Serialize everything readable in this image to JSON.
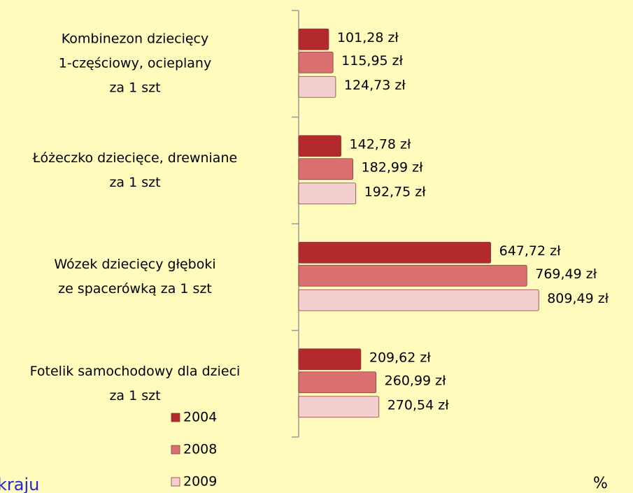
{
  "chart_data": {
    "type": "barh",
    "categories": [
      "Kombinezon dziecięcy\n1-częściowy, ocieplany\nza 1 szt",
      "Łóżeczko dziecięce, drewniane\nza 1 szt",
      "Wózek dziecięcy głęboki\nze spacerówką za 1 szt",
      "Fotelik samochodowy dla dzieci\nza 1 szt"
    ],
    "series": [
      {
        "name": "2004",
        "color": "#b32a2c",
        "values": [
          101.28,
          142.78,
          647.72,
          209.62
        ],
        "value_labels": [
          "101,28 zł",
          "142,78 zł",
          "647,72 zł",
          "209,62 zł"
        ]
      },
      {
        "name": "2008",
        "color": "#d9706f",
        "values": [
          115.95,
          182.99,
          769.49,
          260.99
        ],
        "value_labels": [
          "115,95 zł",
          "182,99 zł",
          "769,49 zł",
          "260,99 zł"
        ]
      },
      {
        "name": "2009",
        "color": "#f3cfcf",
        "values": [
          124.73,
          192.75,
          809.49,
          270.54
        ],
        "value_labels": [
          "124,73 zł",
          "192,75 zł",
          "809,49 zł",
          "270,54 zł"
        ]
      }
    ],
    "xlim": [
      0,
      1000
    ],
    "annotations": [
      "kraju",
      "%"
    ]
  }
}
